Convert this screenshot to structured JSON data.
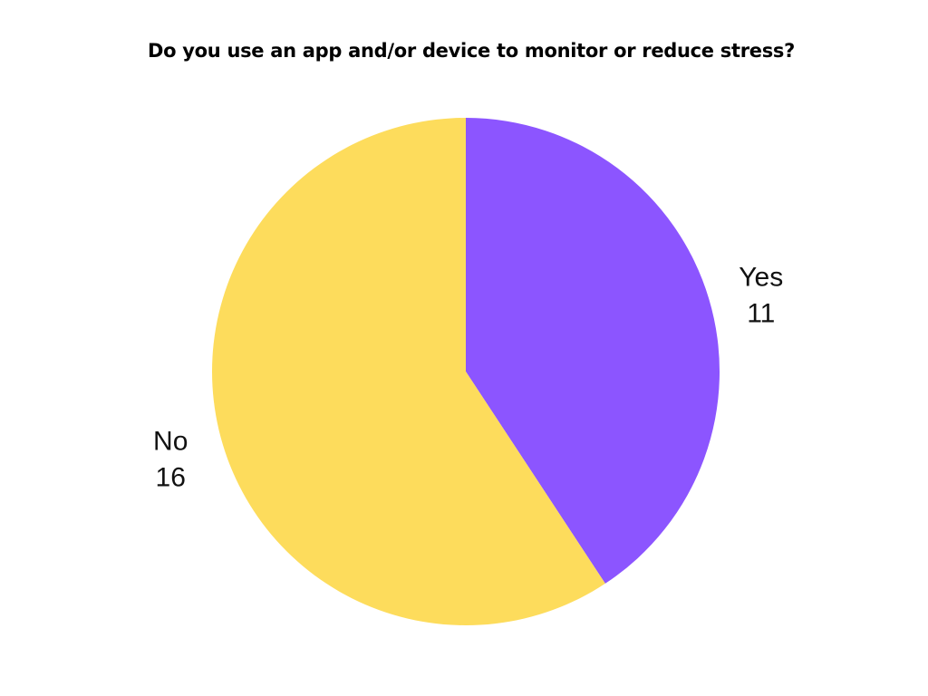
{
  "chart_data": {
    "type": "pie",
    "title": "Do you use an app and/or device to monitor or reduce stress?",
    "slices": [
      {
        "label": "Yes",
        "value": 11,
        "value_label": "11",
        "color": "#8c55ff"
      },
      {
        "label": "No",
        "value": 16,
        "value_label": "16",
        "color": "#fddc5c"
      }
    ],
    "start_angle": "12 o'clock",
    "direction": "clockwise",
    "legend": "none"
  }
}
